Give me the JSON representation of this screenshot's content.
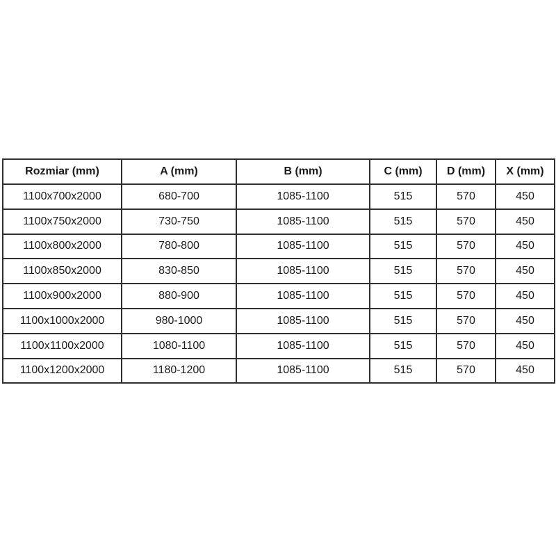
{
  "chart_data": {
    "type": "table",
    "columns": [
      "Rozmiar (mm)",
      "A (mm)",
      "B (mm)",
      "C (mm)",
      "D (mm)",
      "X (mm)"
    ],
    "rows": [
      [
        "1100x700x2000",
        "680-700",
        "1085-1100",
        "515",
        "570",
        "450"
      ],
      [
        "1100x750x2000",
        "730-750",
        "1085-1100",
        "515",
        "570",
        "450"
      ],
      [
        "1100x800x2000",
        "780-800",
        "1085-1100",
        "515",
        "570",
        "450"
      ],
      [
        "1100x850x2000",
        "830-850",
        "1085-1100",
        "515",
        "570",
        "450"
      ],
      [
        "1100x900x2000",
        "880-900",
        "1085-1100",
        "515",
        "570",
        "450"
      ],
      [
        "1100x1000x2000",
        "980-1000",
        "1085-1100",
        "515",
        "570",
        "450"
      ],
      [
        "1100x1100x2000",
        "1080-1100",
        "1085-1100",
        "515",
        "570",
        "450"
      ],
      [
        "1100x1200x2000",
        "1180-1200",
        "1085-1100",
        "515",
        "570",
        "450"
      ]
    ],
    "layout": {
      "grid": "on",
      "header_style": "bold",
      "cell_alignment": "center"
    }
  },
  "colors": {
    "border": "#2f2f2f",
    "text": "#1a1a1a",
    "background": "#ffffff"
  }
}
